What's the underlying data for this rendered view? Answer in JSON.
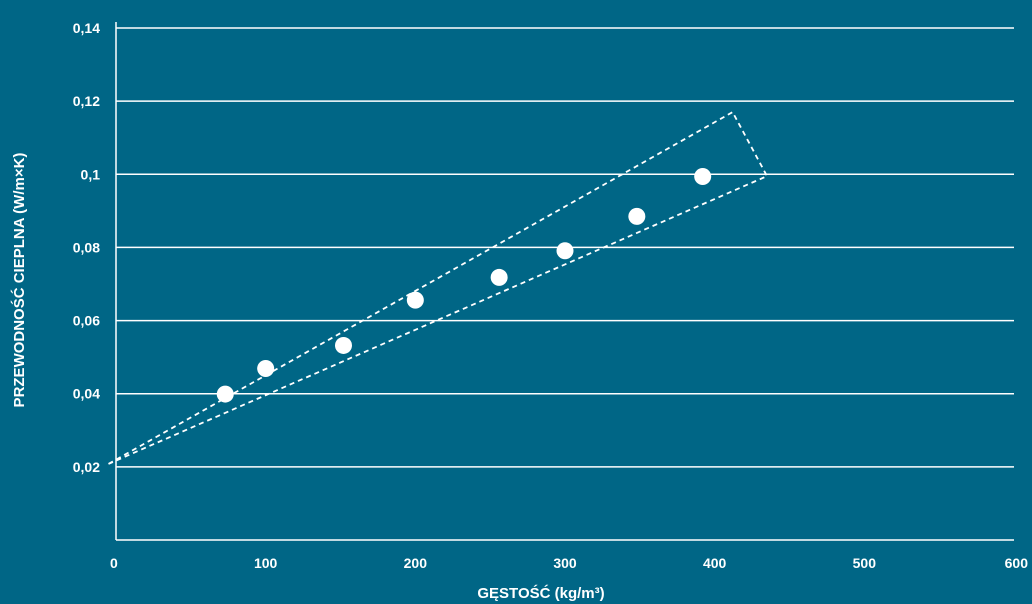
{
  "chart_data": {
    "type": "scatter",
    "title": "",
    "xlabel": "GĘSTOŚĆ (kg/m³)",
    "ylabel": "PRZEWODNOŚĆ CIEPLNA (W/m×K)",
    "xlim": [
      0,
      600
    ],
    "ylim": [
      0,
      0.14
    ],
    "x_ticks": [
      0,
      100,
      200,
      300,
      400,
      500,
      600
    ],
    "x_tick_labels": [
      "0",
      "100",
      "200",
      "300",
      "400",
      "500",
      "600"
    ],
    "y_ticks": [
      0.02,
      0.04,
      0.06,
      0.08,
      0.1,
      0.12,
      0.14
    ],
    "y_tick_labels": [
      "0,02",
      "0,04",
      "0,06",
      "0,08",
      "0,1",
      "0,12",
      "0,14"
    ],
    "grid": "horizontal",
    "series": [
      {
        "x": [
          73,
          100,
          152,
          200,
          256,
          300,
          348,
          392
        ],
        "y": [
          0.0399,
          0.0469,
          0.0532,
          0.0656,
          0.0718,
          0.0791,
          0.0885,
          0.0994
        ]
      }
    ],
    "annotations": [
      {
        "type": "dashed-wedge",
        "points": [
          [
            -5,
            0.0208
          ],
          [
            412,
            0.117
          ],
          [
            435,
            0.0995
          ],
          [
            -5,
            0.0208
          ]
        ]
      }
    ],
    "colors": {
      "background": "#006686",
      "foreground": "#ffffff"
    }
  }
}
